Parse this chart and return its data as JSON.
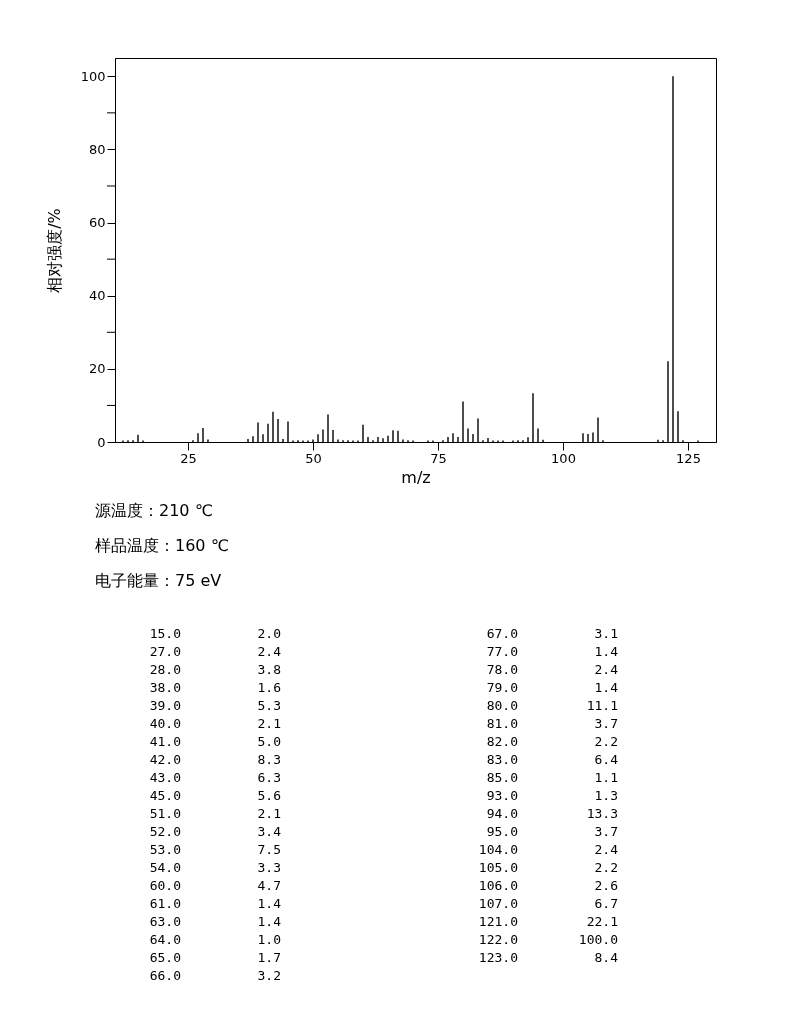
{
  "chart_data": [
    {
      "type": "bar",
      "xlabel": "m/z",
      "ylabel": "相对强度/%",
      "annotations": [
        "源温度：210 ℃",
        "样品温度：160 ℃",
        "电子能量：75 eV"
      ],
      "xlim": [
        10.4,
        130.6
      ],
      "ylim": [
        0,
        105
      ],
      "xticks": [
        25,
        50,
        75,
        100,
        125
      ],
      "yticks": [
        0,
        {
          "value": 10,
          "label": null
        },
        20,
        {
          "value": 30,
          "label": null
        },
        40,
        {
          "value": 50,
          "label": null
        },
        60,
        {
          "value": 70,
          "label": null
        },
        80,
        {
          "value": 90,
          "label": null
        },
        100
      ],
      "grid": false,
      "legend": false,
      "series": [
        {
          "color": "#000000",
          "x": [
            12,
            13,
            14,
            15,
            16,
            26,
            27,
            28,
            29,
            37,
            38,
            39,
            40,
            41,
            42,
            43,
            44,
            45,
            46,
            47,
            48,
            49,
            50,
            51,
            52,
            53,
            54,
            55,
            56,
            57,
            58,
            59,
            60,
            61,
            62,
            63,
            64,
            65,
            66,
            67,
            68,
            69,
            70,
            73,
            74,
            76,
            77,
            78,
            79,
            80,
            81,
            82,
            83,
            84,
            85,
            86,
            87,
            88,
            90,
            91,
            92,
            93,
            94,
            95,
            96,
            104,
            105,
            106,
            107,
            108,
            119,
            120,
            121,
            122,
            123,
            124,
            127
          ],
          "values": [
            0.4,
            0.5,
            0.5,
            2.0,
            0.4,
            0.5,
            2.4,
            3.8,
            0.7,
            0.8,
            1.6,
            5.3,
            2.1,
            5.0,
            8.3,
            6.3,
            0.8,
            5.6,
            0.4,
            0.5,
            0.4,
            0.4,
            0.7,
            2.1,
            3.4,
            7.5,
            3.3,
            0.7,
            0.5,
            0.5,
            0.4,
            0.4,
            4.7,
            1.4,
            0.5,
            1.4,
            1.0,
            1.7,
            3.2,
            3.1,
            0.7,
            0.5,
            0.4,
            0.4,
            0.4,
            0.5,
            1.4,
            2.4,
            1.4,
            11.1,
            3.7,
            2.2,
            6.4,
            0.5,
            1.1,
            0.4,
            0.4,
            0.4,
            0.4,
            0.5,
            0.5,
            1.3,
            13.3,
            3.7,
            0.6,
            2.4,
            2.2,
            2.6,
            6.7,
            0.5,
            0.6,
            0.5,
            22.1,
            100.0,
            8.4,
            0.5,
            0.4
          ]
        }
      ]
    },
    {
      "type": "other",
      "annotations": [
        "15.0",
        "2.0",
        "27.0",
        "2.4",
        "28.0",
        "3.8",
        "38.0",
        "1.6",
        "39.0",
        "5.3",
        "40.0",
        "2.1",
        "41.0",
        "5.0",
        "42.0",
        "8.3",
        "43.0",
        "6.3",
        "45.0",
        "5.6",
        "51.0",
        "2.1",
        "52.0",
        "3.4",
        "53.0",
        "7.5",
        "54.0",
        "3.3",
        "60.0",
        "4.7",
        "61.0",
        "1.4",
        "63.0",
        "1.4",
        "64.0",
        "1.0",
        "65.0",
        "1.7",
        "66.0",
        "3.2",
        "67.0",
        "3.1",
        "77.0",
        "1.4",
        "78.0",
        "2.4",
        "79.0",
        "1.4",
        "80.0",
        "11.1",
        "81.0",
        "3.7",
        "82.0",
        "2.2",
        "83.0",
        "6.4",
        "85.0",
        "1.1",
        "93.0",
        "1.3",
        "94.0",
        "13.3",
        "95.0",
        "3.7",
        "104.0",
        "2.4",
        "105.0",
        "2.2",
        "106.0",
        "2.6",
        "107.0",
        "6.7",
        "121.0",
        "22.1",
        "122.0",
        "100.0",
        "123.0",
        "8.4"
      ]
    }
  ]
}
